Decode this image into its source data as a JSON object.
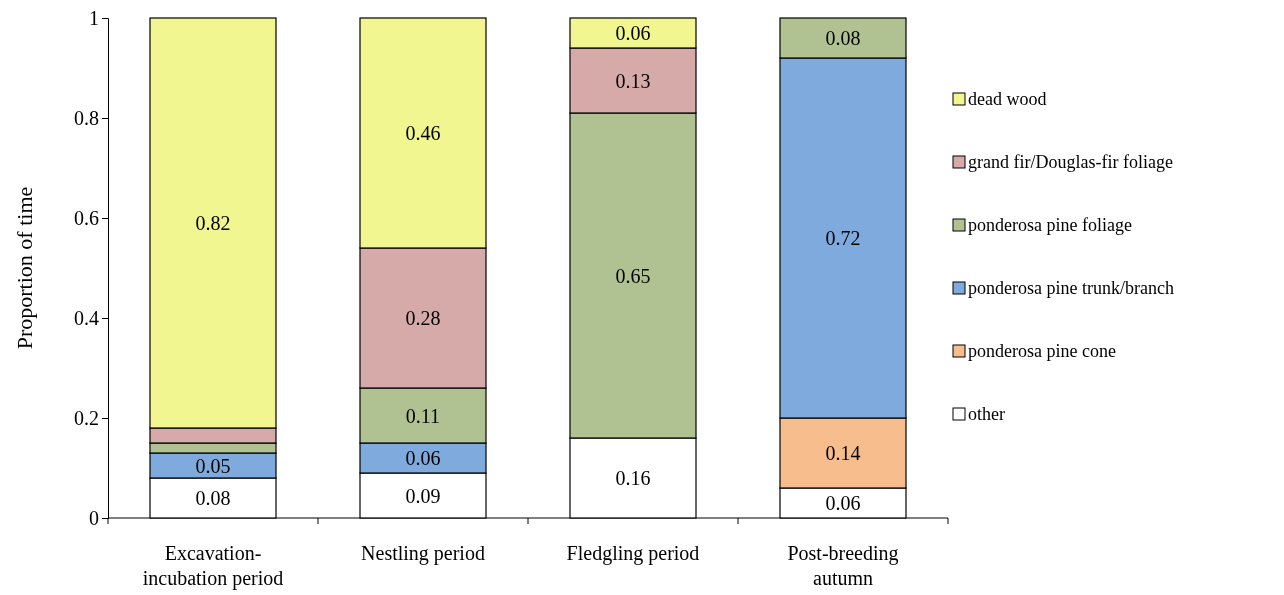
{
  "chart_data": {
    "type": "bar",
    "stacked": true,
    "ylabel": "Proportion of time",
    "categories": [
      "Excavation-incubation period",
      "Nestling period",
      "Fledgling period",
      "Post-breeding autumn"
    ],
    "ylim": [
      0,
      1
    ],
    "yticks": [
      0,
      0.2,
      0.4,
      0.6,
      0.8,
      1
    ],
    "grid": false,
    "legend": "right",
    "series": [
      {
        "name": "other",
        "color": "#ffffff",
        "values": [
          0.08,
          0.09,
          0.16,
          0.06
        ],
        "value_labels": [
          "0.08",
          "0.09",
          "0.16",
          "0.06"
        ]
      },
      {
        "name": "ponderosa pine cone",
        "color": "#f8bd8c",
        "values": [
          0,
          0,
          0,
          0.14
        ],
        "value_labels": [
          null,
          null,
          null,
          "0.14"
        ]
      },
      {
        "name": "ponderosa pine trunk/branch",
        "color": "#7eaadd",
        "values": [
          0.05,
          0.06,
          0,
          0.72
        ],
        "value_labels": [
          "0.05",
          "0.06",
          null,
          "0.72"
        ]
      },
      {
        "name": "ponderosa pine foliage",
        "color": "#b1c292",
        "values": [
          0.02,
          0.11,
          0.65,
          0.08
        ],
        "value_labels": [
          null,
          "0.11",
          "0.65",
          "0.08"
        ]
      },
      {
        "name": "grand fir/Douglas-fir foliage",
        "color": "#d5aaa9",
        "values": [
          0.03,
          0.28,
          0.13,
          0
        ],
        "value_labels": [
          null,
          "0.28",
          "0.13",
          null
        ]
      },
      {
        "name": "dead wood",
        "color": "#f1f690",
        "values": [
          0.82,
          0.46,
          0.06,
          0
        ],
        "value_labels": [
          "0.82",
          "0.46",
          "0.06",
          null
        ]
      }
    ]
  }
}
